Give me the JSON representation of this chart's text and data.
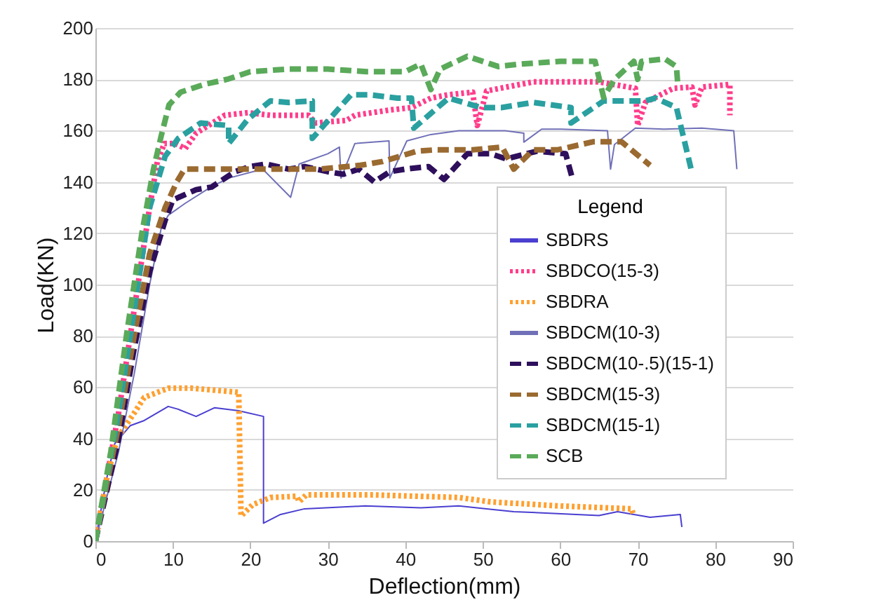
{
  "chart_data": {
    "type": "line",
    "xlabel": "Deflection(mm)",
    "ylabel": "Load(KN)",
    "legend_title": "Legend",
    "legend": "right",
    "grid": "y",
    "xlim": [
      0,
      90
    ],
    "xticks": [
      0,
      10,
      20,
      30,
      40,
      50,
      60,
      70,
      80,
      90
    ],
    "ylim": [
      0,
      200
    ],
    "yticks": [
      0,
      20,
      40,
      60,
      80,
      100,
      120,
      140,
      160,
      180,
      200
    ],
    "series": [
      {
        "name": "SBDRS",
        "color": "#4a3fd0",
        "line_style": "solid",
        "x": [
          0,
          1.5,
          2.5,
          4.5,
          6.3,
          9.4,
          10.7,
          13,
          15.4,
          18.5,
          21.7,
          21.7,
          23.9,
          27,
          34.8,
          42,
          46.9,
          50.5,
          54,
          65,
          67.4,
          71.6,
          75.5,
          75.7
        ],
        "values": [
          0,
          25,
          38,
          45,
          47,
          52.5,
          51.4,
          48.6,
          52,
          50.8,
          48.6,
          7,
          10.4,
          12.6,
          13.7,
          13,
          13.7,
          12.6,
          11.5,
          10,
          11.5,
          9.3,
          10.4,
          5.5
        ]
      },
      {
        "name": "SBDCO(15-3)",
        "color": "#ff3d8b",
        "line_style": "dotted",
        "x": [
          0,
          3,
          5,
          7,
          8,
          8.9,
          10.3,
          11.6,
          13,
          16.7,
          19.7,
          22.6,
          27.5,
          28.4,
          32.4,
          33.5,
          37.9,
          40.8,
          43.3,
          45.6,
          48.7,
          49.3,
          50.5,
          56.5,
          65,
          69.7,
          70,
          71,
          74.6,
          77,
          77.4,
          78.3,
          81.9,
          81.9
        ],
        "values": [
          0,
          50,
          90,
          130,
          148,
          155,
          155,
          153,
          159,
          166,
          167,
          166,
          166,
          163,
          164,
          166,
          168,
          169,
          172.7,
          174,
          175,
          162,
          175.5,
          179,
          179,
          176.5,
          162,
          171,
          176.5,
          177,
          170,
          177,
          178,
          166
        ]
      },
      {
        "name": "SBDRA",
        "color": "#ffa030",
        "line_style": "dotted",
        "x": [
          0,
          1.5,
          2.8,
          5.2,
          6.3,
          9.4,
          12.5,
          18.5,
          18.8,
          20.3,
          22.6,
          26,
          26.3,
          27.2,
          36,
          46.9,
          51,
          60,
          69.2,
          69.5
        ],
        "values": [
          0,
          25,
          40,
          50.8,
          56,
          59.6,
          59.6,
          58,
          9.8,
          14.2,
          17,
          17.5,
          15.3,
          18,
          18,
          17,
          15.3,
          13.7,
          12.6,
          9.8
        ]
      },
      {
        "name": "SBDCM(10-3)",
        "color": "#7070b8",
        "line_style": "solid",
        "x": [
          0,
          3,
          5,
          7,
          8.5,
          9.4,
          11.6,
          14.9,
          17.2,
          21.6,
          25.2,
          26.3,
          30,
          31.5,
          31.7,
          33.5,
          37.9,
          38,
          40.2,
          43.3,
          46.9,
          52.9,
          55.3,
          55.3,
          57.6,
          60.1,
          66.1,
          66.5,
          67,
          69.7,
          73.4,
          78.3,
          82.4,
          82.8
        ],
        "values": [
          0,
          35,
          65,
          100,
          122,
          127,
          131.7,
          138,
          141.5,
          145,
          134,
          147,
          151,
          153.6,
          141.5,
          155,
          156,
          141.5,
          156,
          158.5,
          160,
          160,
          159,
          155.5,
          160.6,
          160.6,
          160,
          145,
          154.6,
          161,
          160.6,
          161,
          160,
          145
        ]
      },
      {
        "name": "SBDCM(10-.5)(15-1)",
        "color": "#2e0f5c",
        "line_style": "dashed",
        "x": [
          0,
          3,
          5,
          7,
          9,
          10,
          13,
          15,
          18,
          20,
          22,
          25,
          27,
          30,
          32,
          34,
          36,
          38,
          40,
          43,
          45,
          48,
          51,
          53,
          57,
          60.7,
          61.6
        ],
        "values": [
          0,
          40,
          75,
          105,
          125,
          133,
          137,
          138,
          144,
          146,
          147,
          145,
          146,
          144,
          143,
          145,
          140,
          144,
          145,
          146,
          141,
          151,
          151,
          149,
          152,
          151,
          141
        ]
      },
      {
        "name": "SBDCM(15-3)",
        "color": "#9a6a30",
        "line_style": "dashed",
        "x": [
          0,
          3,
          5,
          7,
          9,
          10.5,
          11.5,
          12.5,
          18.5,
          28.8,
          34.2,
          37.1,
          41.5,
          43.8,
          48.7,
          52.5,
          54,
          56.5,
          59.6,
          64.3,
          67.9,
          71.6
        ],
        "values": [
          0,
          45,
          80,
          112,
          130,
          140,
          145,
          145,
          145,
          145,
          146.5,
          148,
          152,
          152.5,
          152.5,
          153.6,
          145,
          152.5,
          152.5,
          155.7,
          155.7,
          146.5
        ]
      },
      {
        "name": "SBDCM(15-1)",
        "color": "#2aa0a0",
        "line_style": "dashed",
        "x": [
          0,
          3,
          5,
          7,
          9,
          10.7,
          13.6,
          17.2,
          17.2,
          19.7,
          22.6,
          25,
          28,
          28,
          33,
          35.3,
          39,
          40.8,
          41.1,
          45.6,
          49.8,
          52.4,
          56.5,
          61.4,
          61.4,
          65.6,
          68.7,
          71,
          72.3,
          75,
          77
        ],
        "values": [
          0,
          50,
          90,
          130,
          150,
          157,
          163,
          162,
          155,
          164.5,
          171.6,
          171,
          171.6,
          157,
          174,
          174,
          172.7,
          172.7,
          161,
          172.7,
          169,
          169,
          171,
          169,
          163,
          171.6,
          171.6,
          171.6,
          172.7,
          169,
          143.7
        ]
      },
      {
        "name": "SCB",
        "color": "#5aaa5a",
        "line_style": "dashed",
        "x": [
          0,
          2,
          4,
          6,
          7.5,
          8.5,
          9.5,
          11,
          14,
          17,
          20,
          25,
          30,
          35,
          40,
          42,
          43.3,
          44.5,
          48,
          52,
          55,
          60,
          64.5,
          65.6,
          67,
          69.5,
          70,
          70.5,
          73.5,
          75,
          75.2
        ],
        "values": [
          0,
          35,
          80,
          120,
          145,
          158,
          170,
          175,
          178,
          180,
          183,
          184,
          184,
          183,
          183,
          186,
          176,
          184,
          189,
          185,
          186,
          187,
          187,
          173,
          180,
          187,
          180,
          187,
          188,
          185,
          177
        ]
      }
    ]
  }
}
